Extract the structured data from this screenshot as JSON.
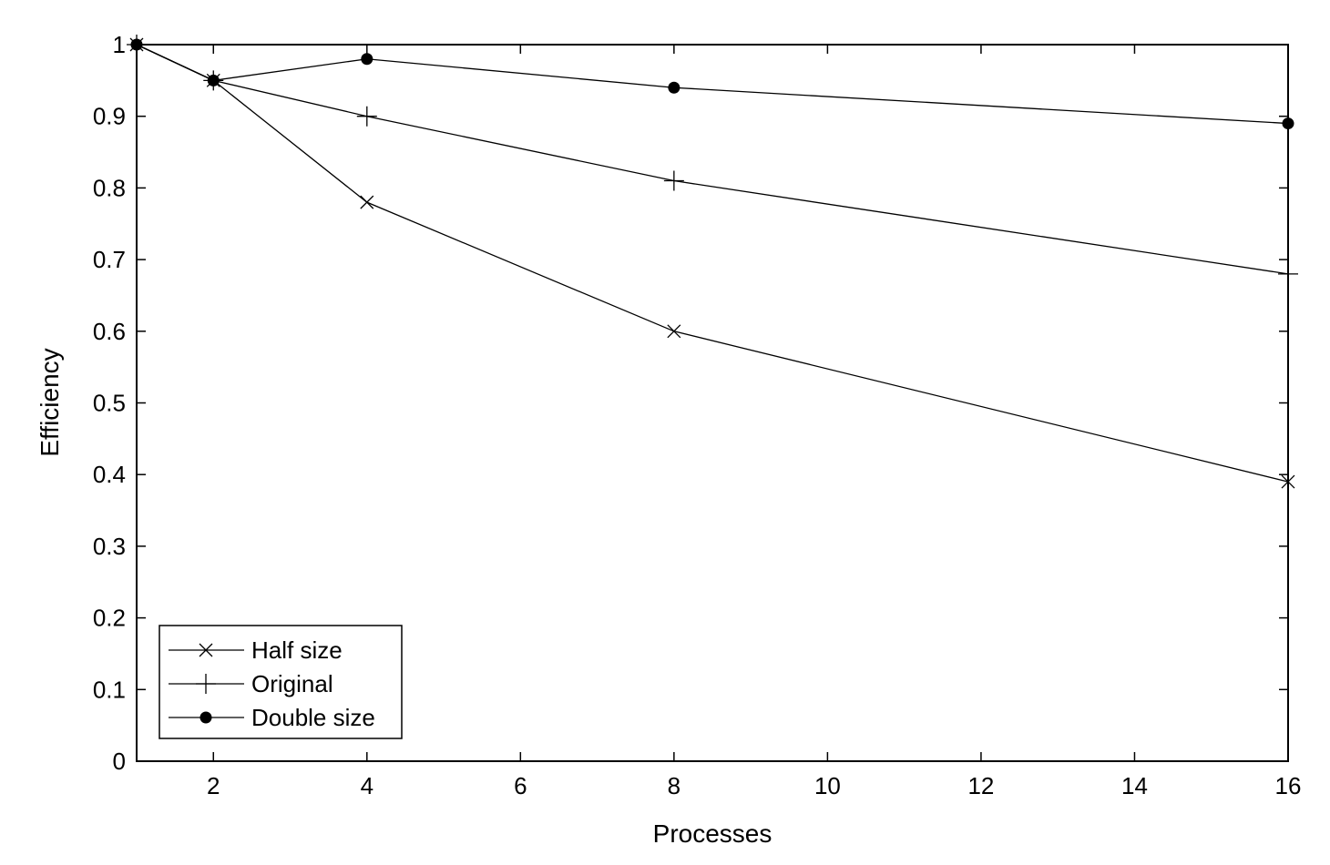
{
  "chart_data": {
    "type": "line",
    "title": "",
    "xlabel": "Processes",
    "ylabel": "Efficiency",
    "xlim": [
      1,
      16
    ],
    "ylim": [
      0,
      1
    ],
    "xticks": [
      "2",
      "4",
      "6",
      "8",
      "10",
      "12",
      "14",
      "16"
    ],
    "yticks": [
      "0",
      "0.1",
      "0.2",
      "0.3",
      "0.4",
      "0.5",
      "0.6",
      "0.7",
      "0.8",
      "0.9",
      "1"
    ],
    "x": [
      1,
      2,
      4,
      8,
      16
    ],
    "series": [
      {
        "name": "Half size",
        "marker": "x",
        "values": [
          1,
          0.95,
          0.78,
          0.6,
          0.39
        ]
      },
      {
        "name": "Original",
        "marker": "+",
        "values": [
          1,
          0.95,
          0.9,
          0.81,
          0.68
        ]
      },
      {
        "name": "Double size",
        "marker": "dot",
        "values": [
          1,
          0.95,
          0.98,
          0.94,
          0.89
        ]
      }
    ],
    "legend_position": "bottom-left",
    "grid": false
  }
}
